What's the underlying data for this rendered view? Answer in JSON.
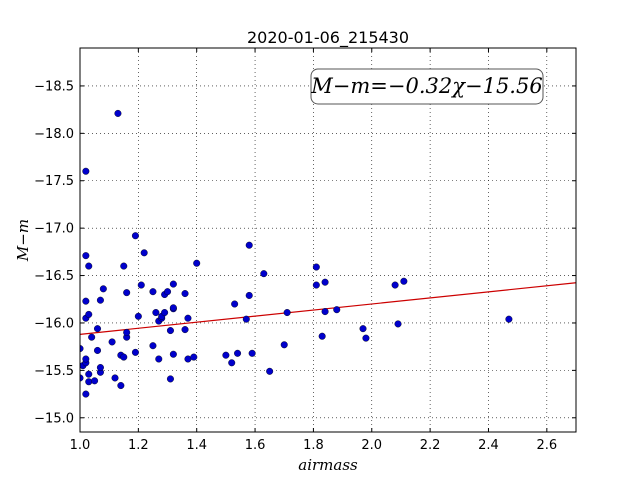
{
  "chart_data": {
    "type": "scatter",
    "title": "2020-01-06_215430",
    "xlabel": "airmass",
    "ylabel": "M−m",
    "xlim": [
      1.0,
      2.7
    ],
    "ylim": [
      -18.9,
      -14.85
    ],
    "y_inverted": true,
    "grid": true,
    "x_ticks": [
      "1.0",
      "1.2",
      "1.4",
      "1.6",
      "1.8",
      "2.0",
      "2.2",
      "2.4",
      "2.6"
    ],
    "y_ticks": [
      "−15.0",
      "−15.5",
      "−16.0",
      "−16.5",
      "−17.0",
      "−17.5",
      "−18.0",
      "−18.5"
    ],
    "fit": {
      "slope": -0.32,
      "intercept": -15.56,
      "label": "M−m=−0.32χ−15.56",
      "color": "#cc0000"
    },
    "point_color": "#0000cc",
    "points": [
      [
        1.0,
        -15.42
      ],
      [
        1.0,
        -15.73
      ],
      [
        1.01,
        -15.55
      ],
      [
        1.02,
        -15.58
      ],
      [
        1.02,
        -15.62
      ],
      [
        1.02,
        -15.25
      ],
      [
        1.03,
        -15.38
      ],
      [
        1.03,
        -15.46
      ],
      [
        1.05,
        -15.39
      ],
      [
        1.02,
        -16.05
      ],
      [
        1.03,
        -16.09
      ],
      [
        1.04,
        -15.85
      ],
      [
        1.06,
        -15.94
      ],
      [
        1.06,
        -15.71
      ],
      [
        1.07,
        -15.48
      ],
      [
        1.07,
        -15.53
      ],
      [
        1.02,
        -16.23
      ],
      [
        1.03,
        -16.6
      ],
      [
        1.02,
        -16.71
      ],
      [
        1.07,
        -16.24
      ],
      [
        1.08,
        -16.36
      ],
      [
        1.02,
        -17.6
      ],
      [
        1.11,
        -15.8
      ],
      [
        1.12,
        -15.42
      ],
      [
        1.14,
        -15.34
      ],
      [
        1.14,
        -15.66
      ],
      [
        1.15,
        -15.64
      ],
      [
        1.16,
        -15.85
      ],
      [
        1.16,
        -15.9
      ],
      [
        1.16,
        -16.32
      ],
      [
        1.15,
        -16.6
      ],
      [
        1.19,
        -15.69
      ],
      [
        1.2,
        -16.07
      ],
      [
        1.21,
        -16.4
      ],
      [
        1.22,
        -16.74
      ],
      [
        1.19,
        -16.92
      ],
      [
        1.13,
        -18.21
      ],
      [
        1.25,
        -15.76
      ],
      [
        1.26,
        -16.11
      ],
      [
        1.27,
        -15.62
      ],
      [
        1.27,
        -16.02
      ],
      [
        1.28,
        -16.05
      ],
      [
        1.28,
        -16.07
      ],
      [
        1.29,
        -16.11
      ],
      [
        1.25,
        -16.33
      ],
      [
        1.29,
        -16.3
      ],
      [
        1.3,
        -16.33
      ],
      [
        1.31,
        -15.41
      ],
      [
        1.31,
        -15.92
      ],
      [
        1.32,
        -15.67
      ],
      [
        1.32,
        -16.15
      ],
      [
        1.32,
        -16.16
      ],
      [
        1.32,
        -16.41
      ],
      [
        1.36,
        -15.93
      ],
      [
        1.37,
        -15.62
      ],
      [
        1.37,
        -16.05
      ],
      [
        1.36,
        -16.31
      ],
      [
        1.39,
        -15.64
      ],
      [
        1.4,
        -16.63
      ],
      [
        1.5,
        -15.66
      ],
      [
        1.52,
        -15.58
      ],
      [
        1.54,
        -15.68
      ],
      [
        1.57,
        -16.04
      ],
      [
        1.58,
        -16.29
      ],
      [
        1.59,
        -15.68
      ],
      [
        1.53,
        -16.2
      ],
      [
        1.58,
        -16.82
      ],
      [
        1.65,
        -15.49
      ],
      [
        1.63,
        -16.52
      ],
      [
        1.7,
        -15.77
      ],
      [
        1.71,
        -16.11
      ],
      [
        1.81,
        -16.4
      ],
      [
        1.81,
        -16.59
      ],
      [
        1.83,
        -15.86
      ],
      [
        1.84,
        -16.12
      ],
      [
        1.84,
        -16.43
      ],
      [
        1.88,
        -16.14
      ],
      [
        1.97,
        -15.94
      ],
      [
        1.98,
        -15.84
      ],
      [
        2.08,
        -16.4
      ],
      [
        2.09,
        -15.99
      ],
      [
        2.11,
        -16.44
      ],
      [
        2.47,
        -16.04
      ]
    ]
  }
}
